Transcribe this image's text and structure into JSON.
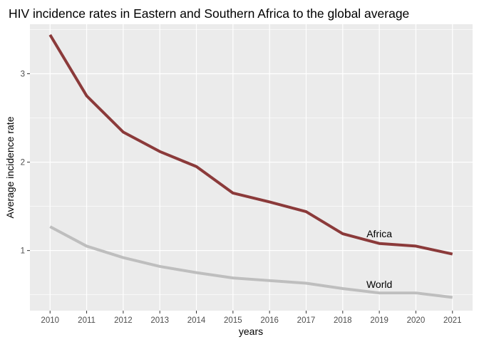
{
  "chart_data": {
    "type": "line",
    "title": "HIV incidence rates in Eastern and Southern Africa to the global average",
    "xlabel": "years",
    "ylabel": "Average incidence rate",
    "x": [
      2010,
      2011,
      2012,
      2013,
      2014,
      2015,
      2016,
      2017,
      2018,
      2019,
      2020,
      2021
    ],
    "xlim": [
      2009.45,
      2021.55
    ],
    "ylim": [
      0.32,
      3.56
    ],
    "yticks": [
      1,
      2,
      3
    ],
    "xticks": [
      2010,
      2011,
      2012,
      2013,
      2014,
      2015,
      2016,
      2017,
      2018,
      2019,
      2020,
      2021
    ],
    "grid": true,
    "legend": "none",
    "background": "#ebebeb",
    "series": [
      {
        "color": "#8b3a3a",
        "values": [
          3.44,
          2.75,
          2.34,
          2.12,
          1.95,
          1.65,
          1.55,
          1.44,
          1.19,
          1.08,
          1.05,
          0.96
        ]
      },
      {
        "color": "#bebebe",
        "values": [
          1.27,
          1.05,
          0.92,
          0.82,
          0.75,
          0.69,
          0.66,
          0.63,
          0.57,
          0.52,
          0.52,
          0.47
        ]
      }
    ],
    "annotations": [
      {
        "text": "Africa",
        "x": 2019,
        "y": 1.19
      },
      {
        "text": "World",
        "x": 2019,
        "y": 0.62
      }
    ]
  }
}
